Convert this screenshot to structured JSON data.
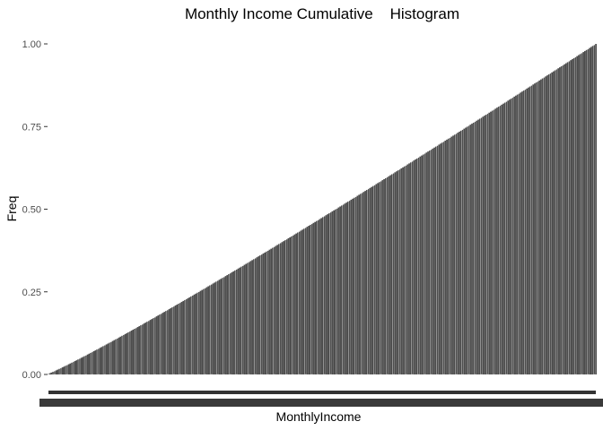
{
  "chart_data": {
    "type": "bar",
    "title": "Monthly Income Cumulative    Histogram",
    "xlabel": "MonthlyIncome",
    "ylabel": "Freq",
    "ylim": [
      0,
      1
    ],
    "y_ticks": [
      "0.00",
      "0.25",
      "0.50",
      "0.75",
      "1.00"
    ],
    "y_tick_values": [
      0,
      0.25,
      0.5,
      0.75,
      1
    ],
    "bar_count": 350,
    "first_value": 0.0008,
    "last_value": 1.0,
    "curve_exponent": 1.08,
    "grid": false,
    "legend": "none",
    "x_tick_labels": "unreadable (overlapping)",
    "colors": {
      "bar": "#4d4d4d",
      "bar_edge": "#ffffff",
      "background": "#ffffff",
      "tick_mark": "#333333"
    }
  }
}
